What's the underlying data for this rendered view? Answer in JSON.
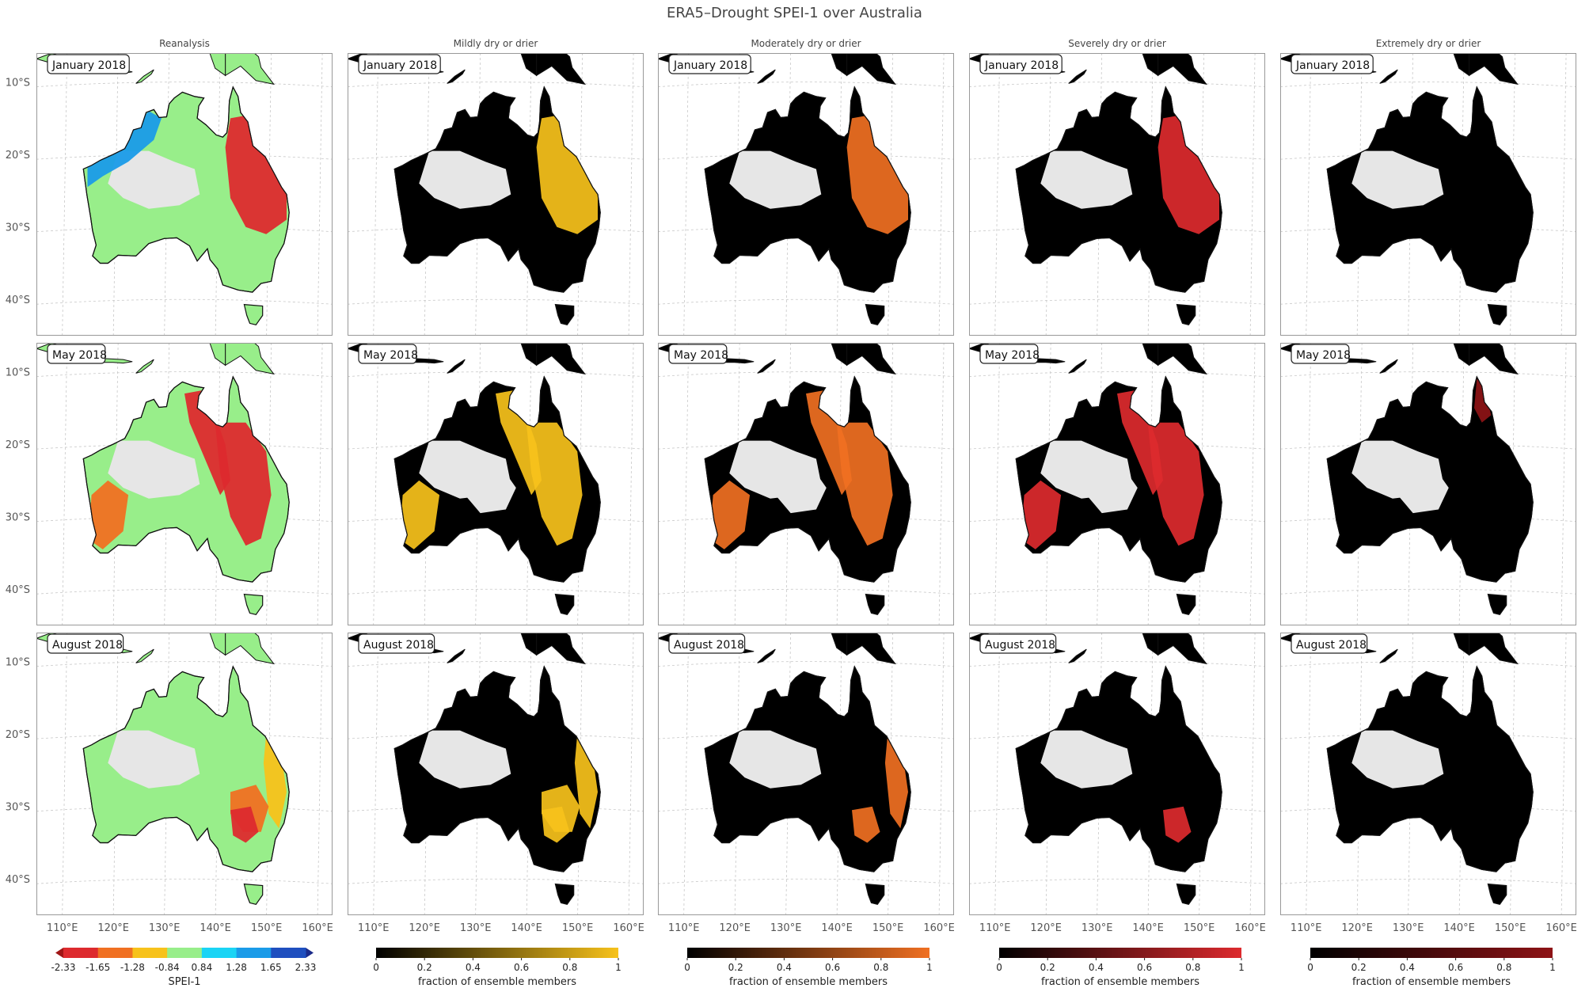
{
  "figure": {
    "title": "ERA5–Drought SPEI-1 over Australia"
  },
  "columns": [
    "Reanalysis",
    "Mildly dry or drier",
    "Moderately dry or drier",
    "Severely dry or drier",
    "Extremely dry or drier"
  ],
  "rows": [
    "January 2018",
    "May 2018",
    "August 2018"
  ],
  "axes": {
    "lat_ticks": [
      "10°S",
      "20°S",
      "30°S",
      "40°S"
    ],
    "lon_ticks": [
      "110°E",
      "120°E",
      "130°E",
      "140°E",
      "150°E",
      "160°E"
    ],
    "lat_values": [
      -10,
      -20,
      -30,
      -40
    ],
    "lon_values": [
      110,
      120,
      130,
      140,
      150,
      160
    ],
    "lon_range": [
      104,
      162
    ],
    "lat_range": [
      -45,
      -6
    ],
    "grid": true
  },
  "colors": {
    "no_drought_land": "#e6e6e6",
    "zero_fraction": "#000000",
    "mild": "#f7c21b",
    "moderate": "#f07022",
    "severe": "#dd2a2e",
    "extreme": "#8e1316"
  },
  "colorbars": [
    {
      "label": "SPEI-1",
      "type": "discrete",
      "ticks": [
        "-2.33",
        "-1.65",
        "-1.28",
        "-0.84",
        "0.84",
        "1.28",
        "1.65",
        "2.33"
      ],
      "colors": [
        "#dd2a2e",
        "#f07022",
        "#f7c21b",
        "#98ee8a",
        "#1ad4f5",
        "#1a9be8",
        "#1f4fbf"
      ],
      "extend_colors": [
        "#a01616",
        "#1a2a8a"
      ]
    },
    {
      "label": "fraction of ensemble members",
      "type": "continuous",
      "ticks": [
        "0",
        "0.2",
        "0.4",
        "0.6",
        "0.8",
        "1"
      ],
      "end_color": "#f7c21b"
    },
    {
      "label": "fraction of ensemble members",
      "type": "continuous",
      "ticks": [
        "0",
        "0.2",
        "0.4",
        "0.6",
        "0.8",
        "1"
      ],
      "end_color": "#f07022"
    },
    {
      "label": "fraction of ensemble members",
      "type": "continuous",
      "ticks": [
        "0",
        "0.2",
        "0.4",
        "0.6",
        "0.8",
        "1"
      ],
      "end_color": "#dd2a2e"
    },
    {
      "label": "fraction of ensemble members",
      "type": "continuous",
      "ticks": [
        "0",
        "0.2",
        "0.4",
        "0.6",
        "0.8",
        "1"
      ],
      "end_color": "#8e1316"
    }
  ],
  "chart_data": {
    "type": "heatmap",
    "title": "ERA5–Drought SPEI-1 over Australia",
    "region": "Australia",
    "variable": "SPEI-1",
    "panels_layout": "3 rows (months) x 5 columns (reanalysis + 4 drought categories)",
    "months": [
      "January 2018",
      "May 2018",
      "August 2018"
    ],
    "reanalysis_dominant_regions": [
      {
        "month": "January 2018",
        "region": "eastern Queensland and NSW",
        "spei": "<= -1.65"
      },
      {
        "month": "January 2018",
        "region": "north-west coast",
        "spei": ">= 1.28"
      },
      {
        "month": "May 2018",
        "region": "south-west Western Australia",
        "spei": "<= -1.28"
      },
      {
        "month": "May 2018",
        "region": "eastern interior and Gulf country",
        "spei": "<= -1.65"
      },
      {
        "month": "August 2018",
        "region": "NSW / Murray-Darling",
        "spei": "<= -1.65"
      },
      {
        "month": "August 2018",
        "region": "east coast",
        "spei": "<= -1.28"
      }
    ],
    "fraction_ranges": [
      0,
      1
    ]
  }
}
